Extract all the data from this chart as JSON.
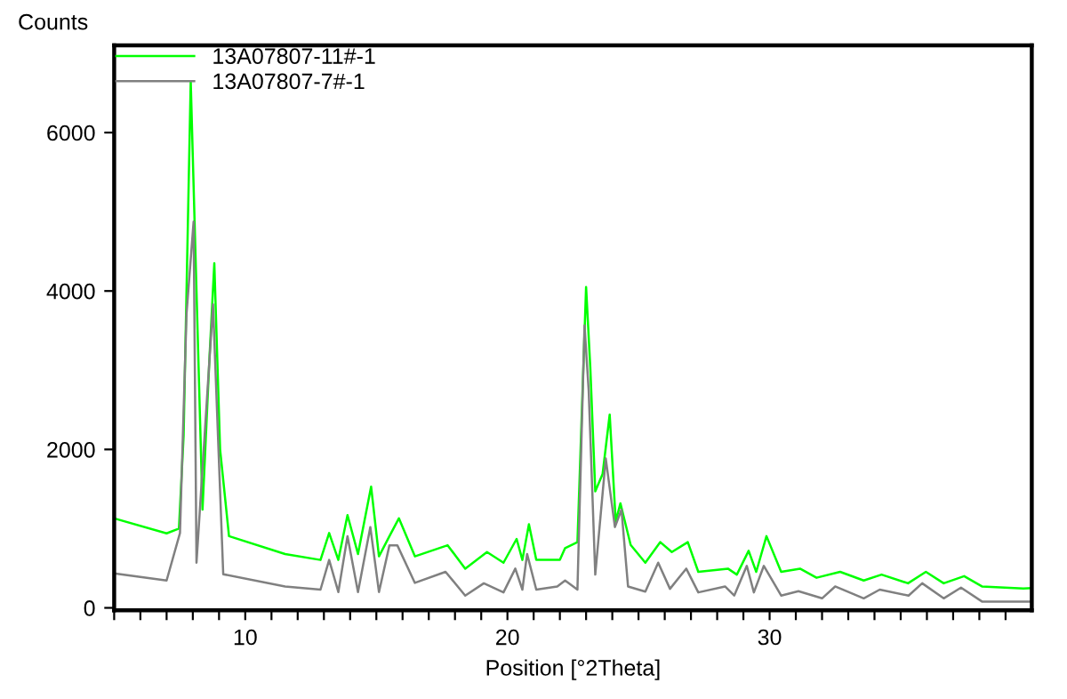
{
  "chart_data": {
    "type": "line",
    "xlabel": "Position [°2Theta]",
    "ylabel": "Counts",
    "xlim": [
      5,
      40
    ],
    "ylim": [
      -30,
      7100
    ],
    "xticks": [
      {
        "value": 5,
        "label": null
      },
      {
        "value": 6,
        "label": null
      },
      {
        "value": 7,
        "label": null
      },
      {
        "value": 8,
        "label": null
      },
      {
        "value": 9,
        "label": null
      },
      10,
      {
        "value": 11,
        "label": null
      },
      {
        "value": 12,
        "label": null
      },
      {
        "value": 13,
        "label": null
      },
      {
        "value": 14,
        "label": null
      },
      {
        "value": 15,
        "label": null
      },
      {
        "value": 16,
        "label": null
      },
      {
        "value": 17,
        "label": null
      },
      {
        "value": 18,
        "label": null
      },
      {
        "value": 19,
        "label": null
      },
      20,
      {
        "value": 21,
        "label": null
      },
      {
        "value": 22,
        "label": null
      },
      {
        "value": 23,
        "label": null
      },
      {
        "value": 24,
        "label": null
      },
      {
        "value": 25,
        "label": null
      },
      {
        "value": 26,
        "label": null
      },
      {
        "value": 27,
        "label": null
      },
      {
        "value": 28,
        "label": null
      },
      {
        "value": 29,
        "label": null
      },
      30,
      {
        "value": 31,
        "label": null
      },
      {
        "value": 32,
        "label": null
      },
      {
        "value": 33,
        "label": null
      },
      {
        "value": 34,
        "label": null
      },
      {
        "value": 35,
        "label": null
      },
      {
        "value": 36,
        "label": null
      },
      {
        "value": 37,
        "label": null
      },
      {
        "value": 38,
        "label": null
      },
      {
        "value": 39,
        "label": null
      }
    ],
    "yticks": [
      0,
      2000,
      4000,
      6000
    ],
    "grid": false,
    "legend": "top left",
    "marker": "none",
    "line_style": "solid",
    "series": [
      {
        "name": "13A07807-11#-1",
        "color": "#00ff00",
        "x": [
          5.0,
          7.0,
          7.47,
          7.65,
          7.92,
          8.37,
          8.64,
          8.82,
          9.04,
          9.38,
          11.52,
          12.87,
          13.2,
          13.55,
          13.9,
          14.3,
          14.8,
          15.1,
          15.5,
          15.86,
          16.47,
          17.72,
          18.39,
          19.22,
          19.85,
          20.35,
          20.57,
          20.82,
          21.1,
          22.0,
          22.2,
          22.67,
          23.0,
          23.16,
          23.35,
          23.63,
          23.9,
          24.13,
          24.31,
          24.7,
          25.26,
          25.83,
          26.27,
          26.88,
          27.28,
          28.41,
          28.75,
          29.2,
          29.49,
          29.88,
          30.44,
          31.16,
          31.79,
          32.69,
          33.59,
          34.27,
          35.28,
          35.96,
          36.64,
          37.42,
          38.1,
          39.68,
          40.0
        ],
        "values": [
          1130,
          940,
          1000,
          2180,
          6650,
          1240,
          3190,
          4350,
          2000,
          905,
          680,
          605,
          945,
          605,
          1170,
          680,
          1530,
          650,
          905,
          1130,
          650,
          790,
          495,
          705,
          570,
          870,
          605,
          1055,
          605,
          605,
          755,
          830,
          4050,
          3040,
          1470,
          1690,
          2440,
          1090,
          1320,
          795,
          570,
          830,
          705,
          830,
          455,
          495,
          420,
          720,
          455,
          905,
          455,
          495,
          380,
          455,
          345,
          420,
          310,
          455,
          310,
          400,
          270,
          245,
          250
        ]
      },
      {
        "name": "13A07807-7#-1",
        "color": "#808080",
        "x": [
          5.0,
          7.0,
          7.51,
          7.76,
          8.03,
          8.14,
          8.77,
          9.16,
          11.52,
          12.87,
          13.2,
          13.55,
          13.9,
          14.3,
          14.77,
          15.1,
          15.5,
          15.8,
          16.47,
          17.64,
          18.39,
          19.1,
          19.85,
          20.3,
          20.57,
          20.75,
          21.1,
          21.9,
          22.2,
          22.67,
          22.94,
          23.1,
          23.35,
          23.75,
          24.1,
          24.35,
          24.6,
          25.26,
          25.75,
          26.2,
          26.82,
          27.28,
          28.3,
          28.65,
          29.13,
          29.4,
          29.78,
          30.44,
          31.1,
          32.0,
          32.5,
          33.59,
          34.2,
          35.3,
          35.82,
          36.64,
          37.3,
          38.1,
          39.68,
          40.0
        ],
        "values": [
          435,
          345,
          945,
          3715,
          4875,
          570,
          3830,
          425,
          270,
          230,
          605,
          200,
          905,
          200,
          1020,
          200,
          790,
          790,
          315,
          455,
          155,
          310,
          195,
          495,
          230,
          680,
          230,
          270,
          345,
          230,
          3565,
          2740,
          420,
          1885,
          1020,
          1240,
          270,
          205,
          570,
          240,
          495,
          195,
          270,
          155,
          530,
          195,
          530,
          155,
          210,
          120,
          270,
          120,
          230,
          155,
          310,
          120,
          255,
          80,
          80,
          80
        ]
      }
    ]
  }
}
